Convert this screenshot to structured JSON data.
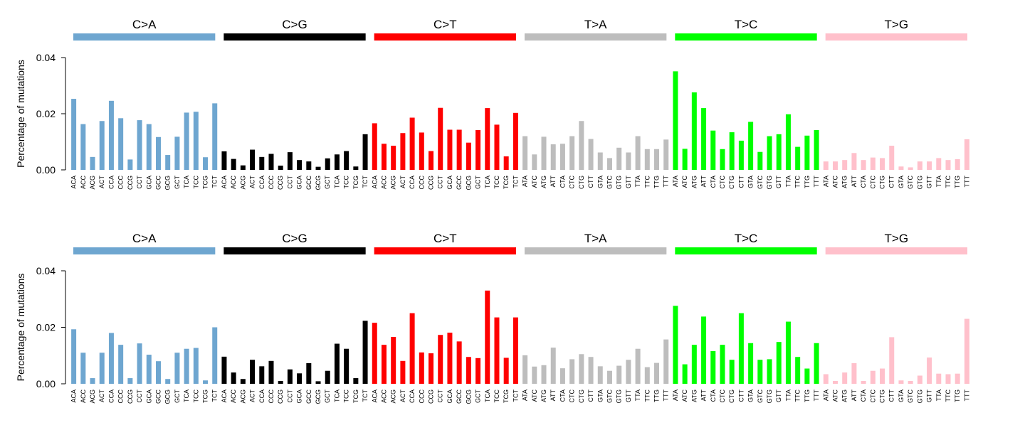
{
  "mutation_types": [
    {
      "label": "C>A",
      "color": "#6ea6d0"
    },
    {
      "label": "C>G",
      "color": "#000000"
    },
    {
      "label": "C>T",
      "color": "#ff0000"
    },
    {
      "label": "T>A",
      "color": "#bdbdbd"
    },
    {
      "label": "T>C",
      "color": "#00ff00"
    },
    {
      "label": "T>G",
      "color": "#ffc0cb"
    }
  ],
  "chart_data": [
    {
      "type": "bar",
      "ylabel": "Percentage of mutations",
      "ylim": [
        0,
        0.04
      ],
      "yticks": [
        "0.00",
        "0.02",
        "0.04"
      ],
      "grid": false,
      "groups": [
        "C>A",
        "C>G",
        "C>T",
        "T>A",
        "T>C",
        "T>G"
      ],
      "categories": [
        "ACA",
        "ACC",
        "ACG",
        "ACT",
        "CCA",
        "CCC",
        "CCG",
        "CCT",
        "GCA",
        "GCC",
        "GCG",
        "GCT",
        "TCA",
        "TCC",
        "TCG",
        "TCT",
        "ACA",
        "ACC",
        "ACG",
        "ACT",
        "CCA",
        "CCC",
        "CCG",
        "CCT",
        "GCA",
        "GCC",
        "GCG",
        "GCT",
        "TCA",
        "TCC",
        "TCG",
        "TCT",
        "ACA",
        "ACC",
        "ACG",
        "ACT",
        "CCA",
        "CCC",
        "CCG",
        "CCT",
        "GCA",
        "GCC",
        "GCG",
        "GCT",
        "TCA",
        "TCC",
        "TCG",
        "TCT",
        "ATA",
        "ATC",
        "ATG",
        "ATT",
        "CTA",
        "CTC",
        "CTG",
        "CTT",
        "GTA",
        "GTC",
        "GTG",
        "GTT",
        "TTA",
        "TTC",
        "TTG",
        "TTT",
        "ATA",
        "ATC",
        "ATG",
        "ATT",
        "CTA",
        "CTC",
        "CTG",
        "CTT",
        "GTA",
        "GTC",
        "GTG",
        "GTT",
        "TTA",
        "TTC",
        "TTG",
        "TTT",
        "ATA",
        "ATC",
        "ATG",
        "ATT",
        "CTA",
        "CTC",
        "CTG",
        "CTT",
        "GTA",
        "GTC",
        "GTG",
        "GTT",
        "TTA",
        "TTC",
        "TTG",
        "TTT"
      ],
      "values": [
        0.0253,
        0.0163,
        0.0046,
        0.0174,
        0.0246,
        0.0184,
        0.0037,
        0.0177,
        0.0163,
        0.0117,
        0.0053,
        0.0118,
        0.0204,
        0.0207,
        0.0045,
        0.0237,
        0.0066,
        0.0039,
        0.0016,
        0.0072,
        0.0046,
        0.0057,
        0.0015,
        0.0063,
        0.0035,
        0.003,
        0.0011,
        0.0041,
        0.0055,
        0.0067,
        0.0012,
        0.0127,
        0.0166,
        0.0093,
        0.0086,
        0.0131,
        0.0186,
        0.0133,
        0.0067,
        0.0221,
        0.0143,
        0.0143,
        0.0097,
        0.0142,
        0.022,
        0.0161,
        0.0048,
        0.0203,
        0.012,
        0.0055,
        0.0118,
        0.0091,
        0.0093,
        0.012,
        0.0174,
        0.011,
        0.0062,
        0.0042,
        0.0079,
        0.0062,
        0.012,
        0.0074,
        0.0074,
        0.0108,
        0.0351,
        0.0075,
        0.0276,
        0.022,
        0.014,
        0.0074,
        0.0134,
        0.0104,
        0.0171,
        0.0064,
        0.012,
        0.0127,
        0.0198,
        0.0082,
        0.0122,
        0.0142,
        0.003,
        0.003,
        0.0035,
        0.006,
        0.0035,
        0.0044,
        0.0042,
        0.0086,
        0.0012,
        0.0009,
        0.003,
        0.003,
        0.0042,
        0.0035,
        0.0038,
        0.0109
      ]
    },
    {
      "type": "bar",
      "ylabel": "Percentage of mutations",
      "ylim": [
        0,
        0.04
      ],
      "yticks": [
        "0.00",
        "0.02",
        "0.04"
      ],
      "grid": false,
      "groups": [
        "C>A",
        "C>G",
        "C>T",
        "T>A",
        "T>C",
        "T>G"
      ],
      "categories": [
        "ACA",
        "ACC",
        "ACG",
        "ACT",
        "CCA",
        "CCC",
        "CCG",
        "CCT",
        "GCA",
        "GCC",
        "GCG",
        "GCT",
        "TCA",
        "TCC",
        "TCG",
        "TCT",
        "ACA",
        "ACC",
        "ACG",
        "ACT",
        "CCA",
        "CCC",
        "CCG",
        "CCT",
        "GCA",
        "GCC",
        "GCG",
        "GCT",
        "TCA",
        "TCC",
        "TCG",
        "TCT",
        "ACA",
        "ACC",
        "ACG",
        "ACT",
        "CCA",
        "CCC",
        "CCG",
        "CCT",
        "GCA",
        "GCC",
        "GCG",
        "GCT",
        "TCA",
        "TCC",
        "TCG",
        "TCT",
        "ATA",
        "ATC",
        "ATG",
        "ATT",
        "CTA",
        "CTC",
        "CTG",
        "CTT",
        "GTA",
        "GTC",
        "GTG",
        "GTT",
        "TTA",
        "TTC",
        "TTG",
        "TTT",
        "ATA",
        "ATC",
        "ATG",
        "ATT",
        "CTA",
        "CTC",
        "CTG",
        "CTT",
        "GTA",
        "GTC",
        "GTG",
        "GTT",
        "TTA",
        "TTC",
        "TTG",
        "TTT",
        "ATA",
        "ATC",
        "ATG",
        "ATT",
        "CTA",
        "CTC",
        "CTG",
        "CTT",
        "GTA",
        "GTC",
        "GTG",
        "GTT",
        "TTA",
        "TTC",
        "TTG",
        "TTT"
      ],
      "values": [
        0.0193,
        0.011,
        0.002,
        0.011,
        0.018,
        0.0138,
        0.002,
        0.0143,
        0.0103,
        0.008,
        0.0017,
        0.011,
        0.0124,
        0.0127,
        0.0012,
        0.02,
        0.0096,
        0.004,
        0.0017,
        0.0085,
        0.0062,
        0.0081,
        0.001,
        0.0051,
        0.0037,
        0.0073,
        0.0009,
        0.0046,
        0.0142,
        0.0124,
        0.002,
        0.0223,
        0.0216,
        0.0138,
        0.0166,
        0.0081,
        0.025,
        0.0111,
        0.0108,
        0.0173,
        0.0181,
        0.015,
        0.0095,
        0.0091,
        0.033,
        0.0235,
        0.0092,
        0.0235,
        0.0101,
        0.0061,
        0.0066,
        0.0128,
        0.0055,
        0.0087,
        0.0105,
        0.0095,
        0.0062,
        0.0046,
        0.0064,
        0.0085,
        0.0124,
        0.0059,
        0.0074,
        0.0157,
        0.0276,
        0.0069,
        0.0138,
        0.0238,
        0.0116,
        0.0138,
        0.0085,
        0.025,
        0.0144,
        0.0085,
        0.0087,
        0.0148,
        0.022,
        0.0095,
        0.0054,
        0.0144,
        0.0034,
        0.001,
        0.004,
        0.0073,
        0.001,
        0.0046,
        0.0054,
        0.0165,
        0.0012,
        0.001,
        0.0029,
        0.0093,
        0.0036,
        0.0034,
        0.0036,
        0.023
      ]
    }
  ]
}
